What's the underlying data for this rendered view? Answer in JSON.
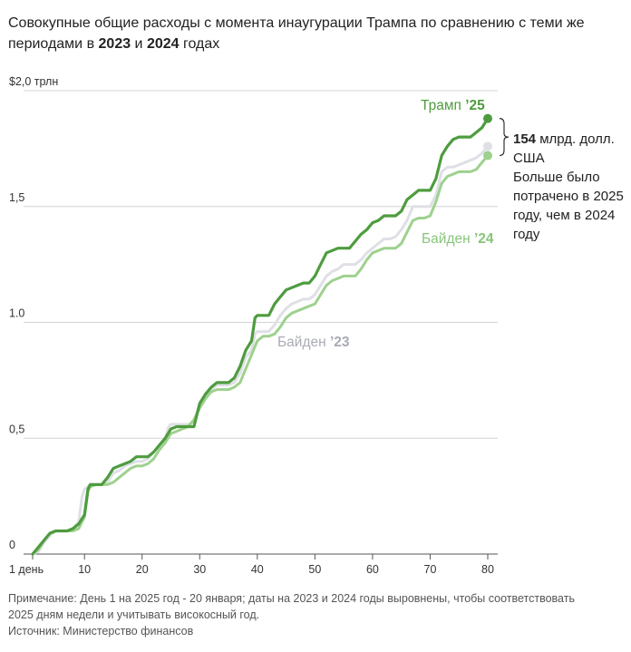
{
  "header": {
    "title_part1": "Совокупные общие расходы с момента инаугурации Трампа по сравнению с теми же периодами в ",
    "year1": "2023",
    "title_and": " и ",
    "year2": "2024",
    "title_part2": " годах"
  },
  "callout": {
    "amount": "154",
    "unit_line": " млрд. долл. США",
    "text": "Больше было потрачено в 2025 году, чем в 2024 году"
  },
  "footer": {
    "note": "Примечание: День 1 на 2025 год - 20 января; даты на 2023 и 2024 годы выровнены, чтобы соответствовать 2025 дням недели и учитывать високосный год.",
    "source": "Источник: Министерство финансов"
  },
  "chart_data": {
    "type": "line",
    "title": "Совокупные общие расходы с момента инаугурации Трампа по сравнению с теми же периодами в 2023 и 2024 годах",
    "xlabel": "",
    "ylabel": "",
    "xlim": [
      1,
      82
    ],
    "ylim": [
      0,
      2.0
    ],
    "x_ticks": [
      {
        "value": 1,
        "label": "1 день"
      },
      {
        "value": 10,
        "label": "10"
      },
      {
        "value": 20,
        "label": "20"
      },
      {
        "value": 30,
        "label": "30"
      },
      {
        "value": 40,
        "label": "40"
      },
      {
        "value": 50,
        "label": "50"
      },
      {
        "value": 60,
        "label": "60"
      },
      {
        "value": 70,
        "label": "70"
      },
      {
        "value": 80,
        "label": "80"
      }
    ],
    "y_ticks": [
      {
        "value": 0,
        "label": "0"
      },
      {
        "value": 0.5,
        "label": "0,5"
      },
      {
        "value": 1.0,
        "label": "1.0"
      },
      {
        "value": 1.5,
        "label": "1,5"
      },
      {
        "value": 2.0,
        "label": "$2,0 трлн"
      }
    ],
    "grid": true,
    "series": [
      {
        "name": "Байден '23",
        "label_prefix": "Байден ",
        "label_suffix": "’23",
        "color": "#dfe0e6",
        "label_color": "#a9abb4",
        "end_dot": true,
        "points": [
          [
            1,
            0.0
          ],
          [
            2,
            0.01
          ],
          [
            3,
            0.05
          ],
          [
            4,
            0.08
          ],
          [
            5,
            0.1
          ],
          [
            6,
            0.1
          ],
          [
            7,
            0.1
          ],
          [
            8,
            0.11
          ],
          [
            9,
            0.14
          ],
          [
            9.6,
            0.25
          ],
          [
            10,
            0.28
          ],
          [
            11,
            0.3
          ],
          [
            12,
            0.3
          ],
          [
            13,
            0.3
          ],
          [
            14,
            0.31
          ],
          [
            15,
            0.35
          ],
          [
            16,
            0.36
          ],
          [
            17,
            0.38
          ],
          [
            18,
            0.39
          ],
          [
            19,
            0.4
          ],
          [
            20,
            0.4
          ],
          [
            21,
            0.41
          ],
          [
            22,
            0.44
          ],
          [
            23,
            0.47
          ],
          [
            24,
            0.5
          ],
          [
            24.6,
            0.55
          ],
          [
            25,
            0.56
          ],
          [
            26,
            0.56
          ],
          [
            27,
            0.56
          ],
          [
            28,
            0.56
          ],
          [
            29,
            0.57
          ],
          [
            30,
            0.65
          ],
          [
            31,
            0.69
          ],
          [
            32,
            0.71
          ],
          [
            33,
            0.73
          ],
          [
            34,
            0.73
          ],
          [
            35,
            0.73
          ],
          [
            36,
            0.74
          ],
          [
            37,
            0.78
          ],
          [
            38,
            0.85
          ],
          [
            39,
            0.88
          ],
          [
            39.6,
            0.95
          ],
          [
            40,
            0.96
          ],
          [
            41,
            0.96
          ],
          [
            42,
            0.96
          ],
          [
            43,
            0.99
          ],
          [
            44,
            1.03
          ],
          [
            45,
            1.06
          ],
          [
            46,
            1.08
          ],
          [
            47,
            1.09
          ],
          [
            48,
            1.1
          ],
          [
            49,
            1.1
          ],
          [
            50,
            1.12
          ],
          [
            51,
            1.16
          ],
          [
            52,
            1.2
          ],
          [
            53,
            1.22
          ],
          [
            54,
            1.23
          ],
          [
            55,
            1.25
          ],
          [
            56,
            1.25
          ],
          [
            57,
            1.25
          ],
          [
            58,
            1.27
          ],
          [
            59,
            1.3
          ],
          [
            60,
            1.32
          ],
          [
            61,
            1.34
          ],
          [
            62,
            1.36
          ],
          [
            63,
            1.36
          ],
          [
            64,
            1.37
          ],
          [
            65,
            1.4
          ],
          [
            66,
            1.44
          ],
          [
            67,
            1.5
          ],
          [
            68,
            1.5
          ],
          [
            69,
            1.5
          ],
          [
            70,
            1.5
          ],
          [
            71,
            1.55
          ],
          [
            72,
            1.65
          ],
          [
            73,
            1.67
          ],
          [
            74,
            1.67
          ],
          [
            75,
            1.68
          ],
          [
            76,
            1.69
          ],
          [
            77,
            1.7
          ],
          [
            78,
            1.71
          ],
          [
            79,
            1.73
          ],
          [
            80,
            1.76
          ]
        ]
      },
      {
        "name": "Байден '24",
        "label_prefix": "Байден ",
        "label_suffix": "’24",
        "color": "#9ed18e",
        "label_color": "#88c57a",
        "end_dot": true,
        "points": [
          [
            1,
            0.0
          ],
          [
            2,
            0.02
          ],
          [
            3,
            0.06
          ],
          [
            4,
            0.09
          ],
          [
            5,
            0.1
          ],
          [
            6,
            0.1
          ],
          [
            7,
            0.1
          ],
          [
            8,
            0.1
          ],
          [
            9,
            0.11
          ],
          [
            10,
            0.16
          ],
          [
            10.6,
            0.27
          ],
          [
            11,
            0.29
          ],
          [
            12,
            0.3
          ],
          [
            13,
            0.3
          ],
          [
            14,
            0.3
          ],
          [
            15,
            0.31
          ],
          [
            16,
            0.33
          ],
          [
            17,
            0.35
          ],
          [
            18,
            0.37
          ],
          [
            19,
            0.38
          ],
          [
            20,
            0.38
          ],
          [
            21,
            0.39
          ],
          [
            22,
            0.41
          ],
          [
            23,
            0.45
          ],
          [
            24,
            0.48
          ],
          [
            25,
            0.52
          ],
          [
            26,
            0.53
          ],
          [
            27,
            0.54
          ],
          [
            28,
            0.55
          ],
          [
            29,
            0.58
          ],
          [
            30,
            0.63
          ],
          [
            31,
            0.67
          ],
          [
            32,
            0.7
          ],
          [
            33,
            0.71
          ],
          [
            34,
            0.71
          ],
          [
            35,
            0.71
          ],
          [
            36,
            0.72
          ],
          [
            37,
            0.74
          ],
          [
            38,
            0.8
          ],
          [
            39,
            0.86
          ],
          [
            40,
            0.92
          ],
          [
            41,
            0.94
          ],
          [
            42,
            0.94
          ],
          [
            43,
            0.95
          ],
          [
            44,
            0.98
          ],
          [
            45,
            1.02
          ],
          [
            46,
            1.04
          ],
          [
            47,
            1.05
          ],
          [
            48,
            1.06
          ],
          [
            49,
            1.07
          ],
          [
            50,
            1.08
          ],
          [
            51,
            1.12
          ],
          [
            52,
            1.16
          ],
          [
            53,
            1.18
          ],
          [
            54,
            1.19
          ],
          [
            55,
            1.2
          ],
          [
            56,
            1.2
          ],
          [
            57,
            1.2
          ],
          [
            58,
            1.23
          ],
          [
            59,
            1.27
          ],
          [
            60,
            1.3
          ],
          [
            61,
            1.31
          ],
          [
            62,
            1.32
          ],
          [
            63,
            1.32
          ],
          [
            64,
            1.32
          ],
          [
            65,
            1.34
          ],
          [
            66,
            1.39
          ],
          [
            67,
            1.44
          ],
          [
            68,
            1.45
          ],
          [
            69,
            1.45
          ],
          [
            70,
            1.46
          ],
          [
            71,
            1.52
          ],
          [
            72,
            1.6
          ],
          [
            73,
            1.63
          ],
          [
            74,
            1.64
          ],
          [
            75,
            1.65
          ],
          [
            76,
            1.65
          ],
          [
            77,
            1.65
          ],
          [
            78,
            1.66
          ],
          [
            79,
            1.69
          ],
          [
            80,
            1.72
          ]
        ]
      },
      {
        "name": "Трамп '25",
        "label_prefix": "Трамп ",
        "label_suffix": "’25",
        "color": "#4e9c3f",
        "label_color": "#4e9c3f",
        "end_dot": true,
        "points": [
          [
            1,
            0.0
          ],
          [
            2,
            0.03
          ],
          [
            3,
            0.06
          ],
          [
            4,
            0.09
          ],
          [
            5,
            0.1
          ],
          [
            6,
            0.1
          ],
          [
            7,
            0.1
          ],
          [
            8,
            0.11
          ],
          [
            9,
            0.13
          ],
          [
            10,
            0.17
          ],
          [
            10.6,
            0.28
          ],
          [
            11,
            0.3
          ],
          [
            12,
            0.3
          ],
          [
            13,
            0.3
          ],
          [
            14,
            0.33
          ],
          [
            15,
            0.37
          ],
          [
            16,
            0.38
          ],
          [
            17,
            0.39
          ],
          [
            18,
            0.4
          ],
          [
            19,
            0.42
          ],
          [
            20,
            0.42
          ],
          [
            21,
            0.42
          ],
          [
            22,
            0.44
          ],
          [
            23,
            0.47
          ],
          [
            24,
            0.5
          ],
          [
            25,
            0.54
          ],
          [
            26,
            0.55
          ],
          [
            27,
            0.55
          ],
          [
            28,
            0.55
          ],
          [
            29,
            0.55
          ],
          [
            30,
            0.65
          ],
          [
            31,
            0.69
          ],
          [
            32,
            0.72
          ],
          [
            33,
            0.74
          ],
          [
            34,
            0.74
          ],
          [
            35,
            0.74
          ],
          [
            36,
            0.76
          ],
          [
            37,
            0.81
          ],
          [
            38,
            0.88
          ],
          [
            39,
            0.92
          ],
          [
            39.6,
            1.02
          ],
          [
            40,
            1.03
          ],
          [
            41,
            1.03
          ],
          [
            42,
            1.03
          ],
          [
            43,
            1.08
          ],
          [
            44,
            1.11
          ],
          [
            45,
            1.14
          ],
          [
            46,
            1.15
          ],
          [
            47,
            1.16
          ],
          [
            48,
            1.17
          ],
          [
            49,
            1.17
          ],
          [
            50,
            1.2
          ],
          [
            51,
            1.25
          ],
          [
            52,
            1.3
          ],
          [
            53,
            1.31
          ],
          [
            54,
            1.32
          ],
          [
            55,
            1.32
          ],
          [
            56,
            1.32
          ],
          [
            57,
            1.35
          ],
          [
            58,
            1.38
          ],
          [
            59,
            1.4
          ],
          [
            60,
            1.43
          ],
          [
            61,
            1.44
          ],
          [
            62,
            1.46
          ],
          [
            63,
            1.46
          ],
          [
            64,
            1.46
          ],
          [
            65,
            1.48
          ],
          [
            66,
            1.53
          ],
          [
            67,
            1.55
          ],
          [
            68,
            1.57
          ],
          [
            69,
            1.57
          ],
          [
            70,
            1.57
          ],
          [
            71,
            1.62
          ],
          [
            72,
            1.72
          ],
          [
            73,
            1.76
          ],
          [
            74,
            1.79
          ],
          [
            75,
            1.8
          ],
          [
            76,
            1.8
          ],
          [
            77,
            1.8
          ],
          [
            78,
            1.82
          ],
          [
            79,
            1.84
          ],
          [
            80,
            1.88
          ]
        ]
      }
    ]
  }
}
